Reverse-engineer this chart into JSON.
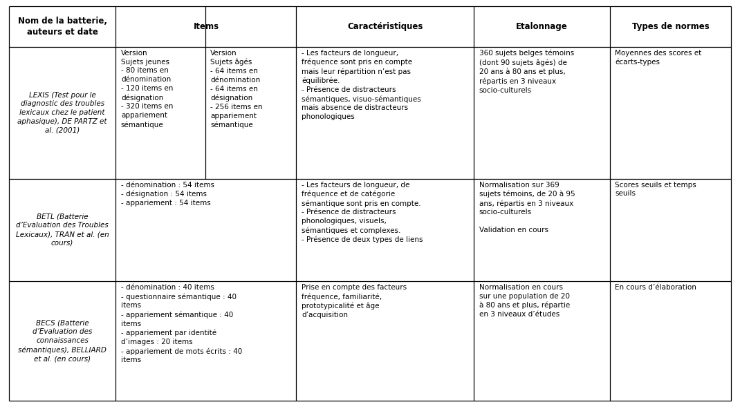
{
  "background_color": "#ffffff",
  "border_color": "#000000",
  "text_color": "#000000",
  "fig_width": 10.7,
  "fig_height": 5.92,
  "dpi": 100,
  "col_boundaries": [
    0.0,
    0.148,
    0.272,
    0.398,
    0.644,
    0.832,
    1.0
  ],
  "row_boundaries": [
    1.0,
    0.897,
    0.563,
    0.303,
    0.0
  ],
  "header_texts": [
    {
      "text": "Nom de la batterie,\nauteurs et date",
      "bold": true,
      "center": true
    },
    {
      "text": "Items",
      "bold": true,
      "center": true,
      "span": [
        1,
        3
      ]
    },
    {
      "text": "Caractéristiques",
      "bold": true,
      "center": true
    },
    {
      "text": "Etalonnage",
      "bold": true,
      "center": true
    },
    {
      "text": "Types de normes",
      "bold": true,
      "center": true
    }
  ],
  "row0": {
    "col0": {
      "text": "LEXIS (Test pour le\ndiagnostic des troubles\nlexicaux chez le patient\naphasique), DE PARTZ et\nal. (2001)",
      "italic": true,
      "center": true
    },
    "col1a": {
      "text": "Version\nSujets jeunes\n- 80 items en\ndénomination\n- 120 items en\ndésignation\n- 320 items en\nappariement\nsémantique",
      "left": true
    },
    "col1b": {
      "text": "Version\nSujets âgés\n- 64 items en\ndénomination\n- 64 items en\ndésignation\n- 256 items en\nappariement\nsémantique",
      "left": true
    },
    "col2": {
      "text": "- Les facteurs de longueur,\nfréquence sont pris en compte\nmais leur répartition n’est pas\néquilibrée.\n- Présence de distracteurs\nsémantiques, visuo-sémantiques\nmais absence de distracteurs\nphonologiques",
      "left": true
    },
    "col3": {
      "text": "360 sujets belges témoins\n(dont 90 sujets âgés) de\n20 ans à 80 ans et plus,\nrépartis en 3 niveaux\nsocio-culturels",
      "left": true
    },
    "col4": {
      "text": "Moyennes des scores et\nécarts-types",
      "left": true
    }
  },
  "row1": {
    "col0": {
      "text": "BETL (Batterie\nd’Evaluation des Troubles\nLexicaux), TRAN et al. (en\ncours)",
      "italic": true,
      "center": true
    },
    "col1": {
      "text": "- dénomination : 54 items\n- désignation : 54 items\n- appariement : 54 items",
      "left": true
    },
    "col2": {
      "text": "- Les facteurs de longueur, de\nfréquence et de catégorie\nsémantique sont pris en compte.\n- Présence de distracteurs\nphonologiques, visuels,\nsémantiques et complexes.\n- Présence de deux types de liens",
      "left": true
    },
    "col3": {
      "text": "Normalisation sur 369\nsujets témoins, de 20 à 95\nans, répartis en 3 niveaux\nsocio-culturels\n\nValidation en cours",
      "left": true
    },
    "col4": {
      "text": "Scores seuils et temps\nseuils",
      "left": true
    }
  },
  "row2": {
    "col0": {
      "text": "BECS (Batterie\nd’Evaluation des\nconnaissances\nsémantiques), BELLIARD\net al. (en cours)",
      "italic": true,
      "center": true
    },
    "col1": {
      "text": "- dénomination : 40 items\n- questionnaire sémantique : 40\nitems\n- appariement sémantique : 40\nitems\n- appariement par identité\nd’images : 20 items\n- appariement de mots écrits : 40\nitems",
      "left": true
    },
    "col2": {
      "text": "Prise en compte des facteurs\nfréquence, familiarité,\nprototypicalité et âge\nd’acquisition",
      "left": true
    },
    "col3": {
      "text": "Normalisation en cours\nsur une population de 20\nà 80 ans et plus, répartie\nen 3 niveaux d’études",
      "left": true
    },
    "col4": {
      "text": "En cours d’élaboration",
      "left": true
    }
  }
}
